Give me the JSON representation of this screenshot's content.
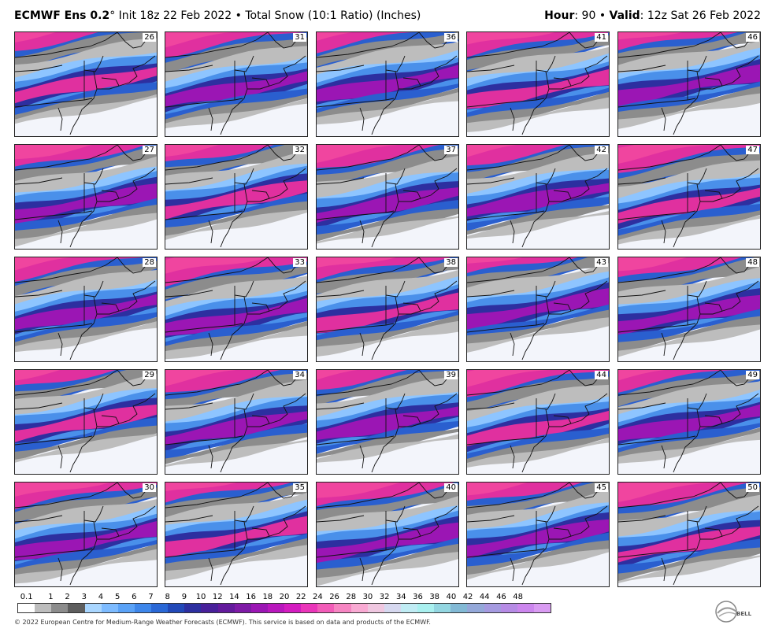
{
  "header": {
    "model": "ECMWF Ens 0.2",
    "degree": "°",
    "init": " Init 18z 22 Feb 2022 • Total Snow (10:1 Ratio) (Inches)",
    "hour_label": "Hour",
    "hour_value": ": 90 • ",
    "valid_label": "Valid",
    "valid_value": ": 12z Sat 26 Feb 2022"
  },
  "members": [
    [
      "26",
      "31",
      "36",
      "41",
      "46"
    ],
    [
      "27",
      "32",
      "37",
      "42",
      "47"
    ],
    [
      "28",
      "33",
      "38",
      "43",
      "48"
    ],
    [
      "29",
      "34",
      "39",
      "44",
      "49"
    ],
    [
      "30",
      "35",
      "40",
      "45",
      "50"
    ]
  ],
  "colorbar": {
    "labels": [
      "0.1",
      "1",
      "2",
      "3",
      "4",
      "5",
      "6",
      "7",
      "8",
      "9",
      "10",
      "12",
      "14",
      "16",
      "18",
      "20",
      "22",
      "24",
      "26",
      "28",
      "30",
      "32",
      "34",
      "36",
      "38",
      "40",
      "42",
      "44",
      "46",
      "48"
    ],
    "colors": [
      "#ffffff",
      "#bdbdbd",
      "#8c8c8c",
      "#5e5e5e",
      "#a9d6ff",
      "#7dbbff",
      "#5aa2f7",
      "#3d86ea",
      "#2a68d6",
      "#2249b8",
      "#2d2fa0",
      "#48209a",
      "#631a9c",
      "#7e1aa6",
      "#9b16b4",
      "#b917bd",
      "#d41cc0",
      "#ea35b9",
      "#f25cb8",
      "#f685c2",
      "#f9aad3",
      "#efc7e0",
      "#d6d8ef",
      "#c0ecf4",
      "#a9f0ef",
      "#93d6e1",
      "#82b9d5",
      "#94a8d9",
      "#a59ae0",
      "#b68be5",
      "#cc86ee",
      "#d99bf2"
    ],
    "semantic": "snowfall accumulation inches"
  },
  "footer": {
    "credit": "© 2022 European Centre for Medium-Range Weather Forecasts (ECMWF). This service is based on data and products of the ECMWF.",
    "logo_text": "BELL"
  }
}
